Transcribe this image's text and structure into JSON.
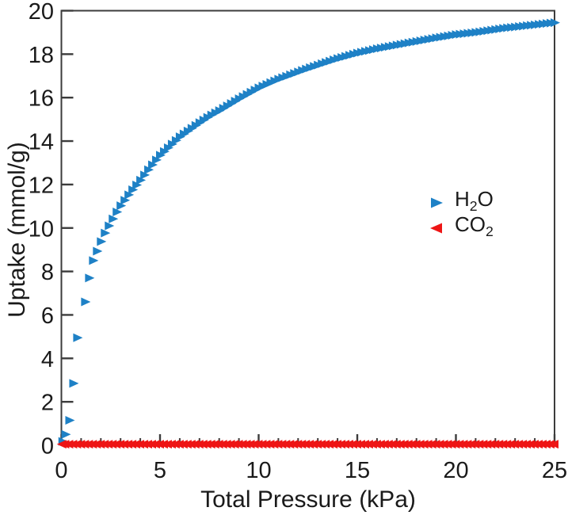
{
  "colors": {
    "h2o_marker": "#1e81c6",
    "co2_marker": "#ee1515",
    "axis_frame": "#3c3c3c",
    "text": "#1a1a1a",
    "background": "#ffffff"
  },
  "chart_data": {
    "type": "scatter",
    "title": "",
    "xlabel": "Total Pressure (kPa)",
    "ylabel": "Uptake (mmol/g)",
    "xlim": [
      0,
      25
    ],
    "ylim": [
      0,
      20
    ],
    "x_ticks_major": [
      0,
      5,
      10,
      15,
      20,
      25
    ],
    "x_minor_tick_step": 1,
    "y_ticks_major": [
      0,
      2,
      4,
      6,
      8,
      10,
      12,
      14,
      16,
      18,
      20
    ],
    "grid": false,
    "legend_position": "center-right",
    "legend_frame": false,
    "series": [
      {
        "name": "H2O",
        "label_parts": [
          {
            "text": "H"
          },
          {
            "text": "2",
            "sub": true
          },
          {
            "text": "O"
          }
        ],
        "marker": "triangle-right",
        "color": "#1e81c6",
        "sampling": {
          "head_x": [
            0.05,
            0.2,
            0.4,
            0.6,
            0.8
          ],
          "start": 1.2,
          "step": 0.2,
          "end": 25
        },
        "anchor_points": [
          [
            0.05,
            0.18
          ],
          [
            0.2,
            0.5
          ],
          [
            0.4,
            1.15
          ],
          [
            0.6,
            2.85
          ],
          [
            0.8,
            4.95
          ],
          [
            1.2,
            6.6
          ],
          [
            1.4,
            7.7
          ],
          [
            1.6,
            8.5
          ],
          [
            1.9,
            9.15
          ],
          [
            2.1,
            9.6
          ],
          [
            2.4,
            10.1
          ],
          [
            2.9,
            10.9
          ],
          [
            3.5,
            11.65
          ],
          [
            4,
            12.2
          ],
          [
            4.5,
            12.8
          ],
          [
            5,
            13.35
          ],
          [
            6,
            14.2
          ],
          [
            7,
            14.85
          ],
          [
            7.5,
            15.15
          ],
          [
            8,
            15.4
          ],
          [
            9,
            15.95
          ],
          [
            10,
            16.45
          ],
          [
            11,
            16.85
          ],
          [
            12.5,
            17.35
          ],
          [
            14,
            17.8
          ],
          [
            15,
            18.05
          ],
          [
            16,
            18.25
          ],
          [
            17.5,
            18.5
          ],
          [
            19,
            18.75
          ],
          [
            20,
            18.9
          ],
          [
            21,
            19.0
          ],
          [
            22.5,
            19.2
          ],
          [
            24,
            19.35
          ],
          [
            25,
            19.45
          ]
        ]
      },
      {
        "name": "CO2",
        "label_parts": [
          {
            "text": "C"
          },
          {
            "text": "O"
          },
          {
            "text": "2",
            "sub": true
          }
        ],
        "marker": "triangle-left",
        "color": "#ee1515",
        "sampling": {
          "head_x": [
            0.05
          ],
          "start": 0.2,
          "step": 0.2,
          "end": 25
        },
        "anchor_points": [
          [
            0,
            0.05
          ],
          [
            25,
            0.05
          ]
        ]
      }
    ]
  }
}
